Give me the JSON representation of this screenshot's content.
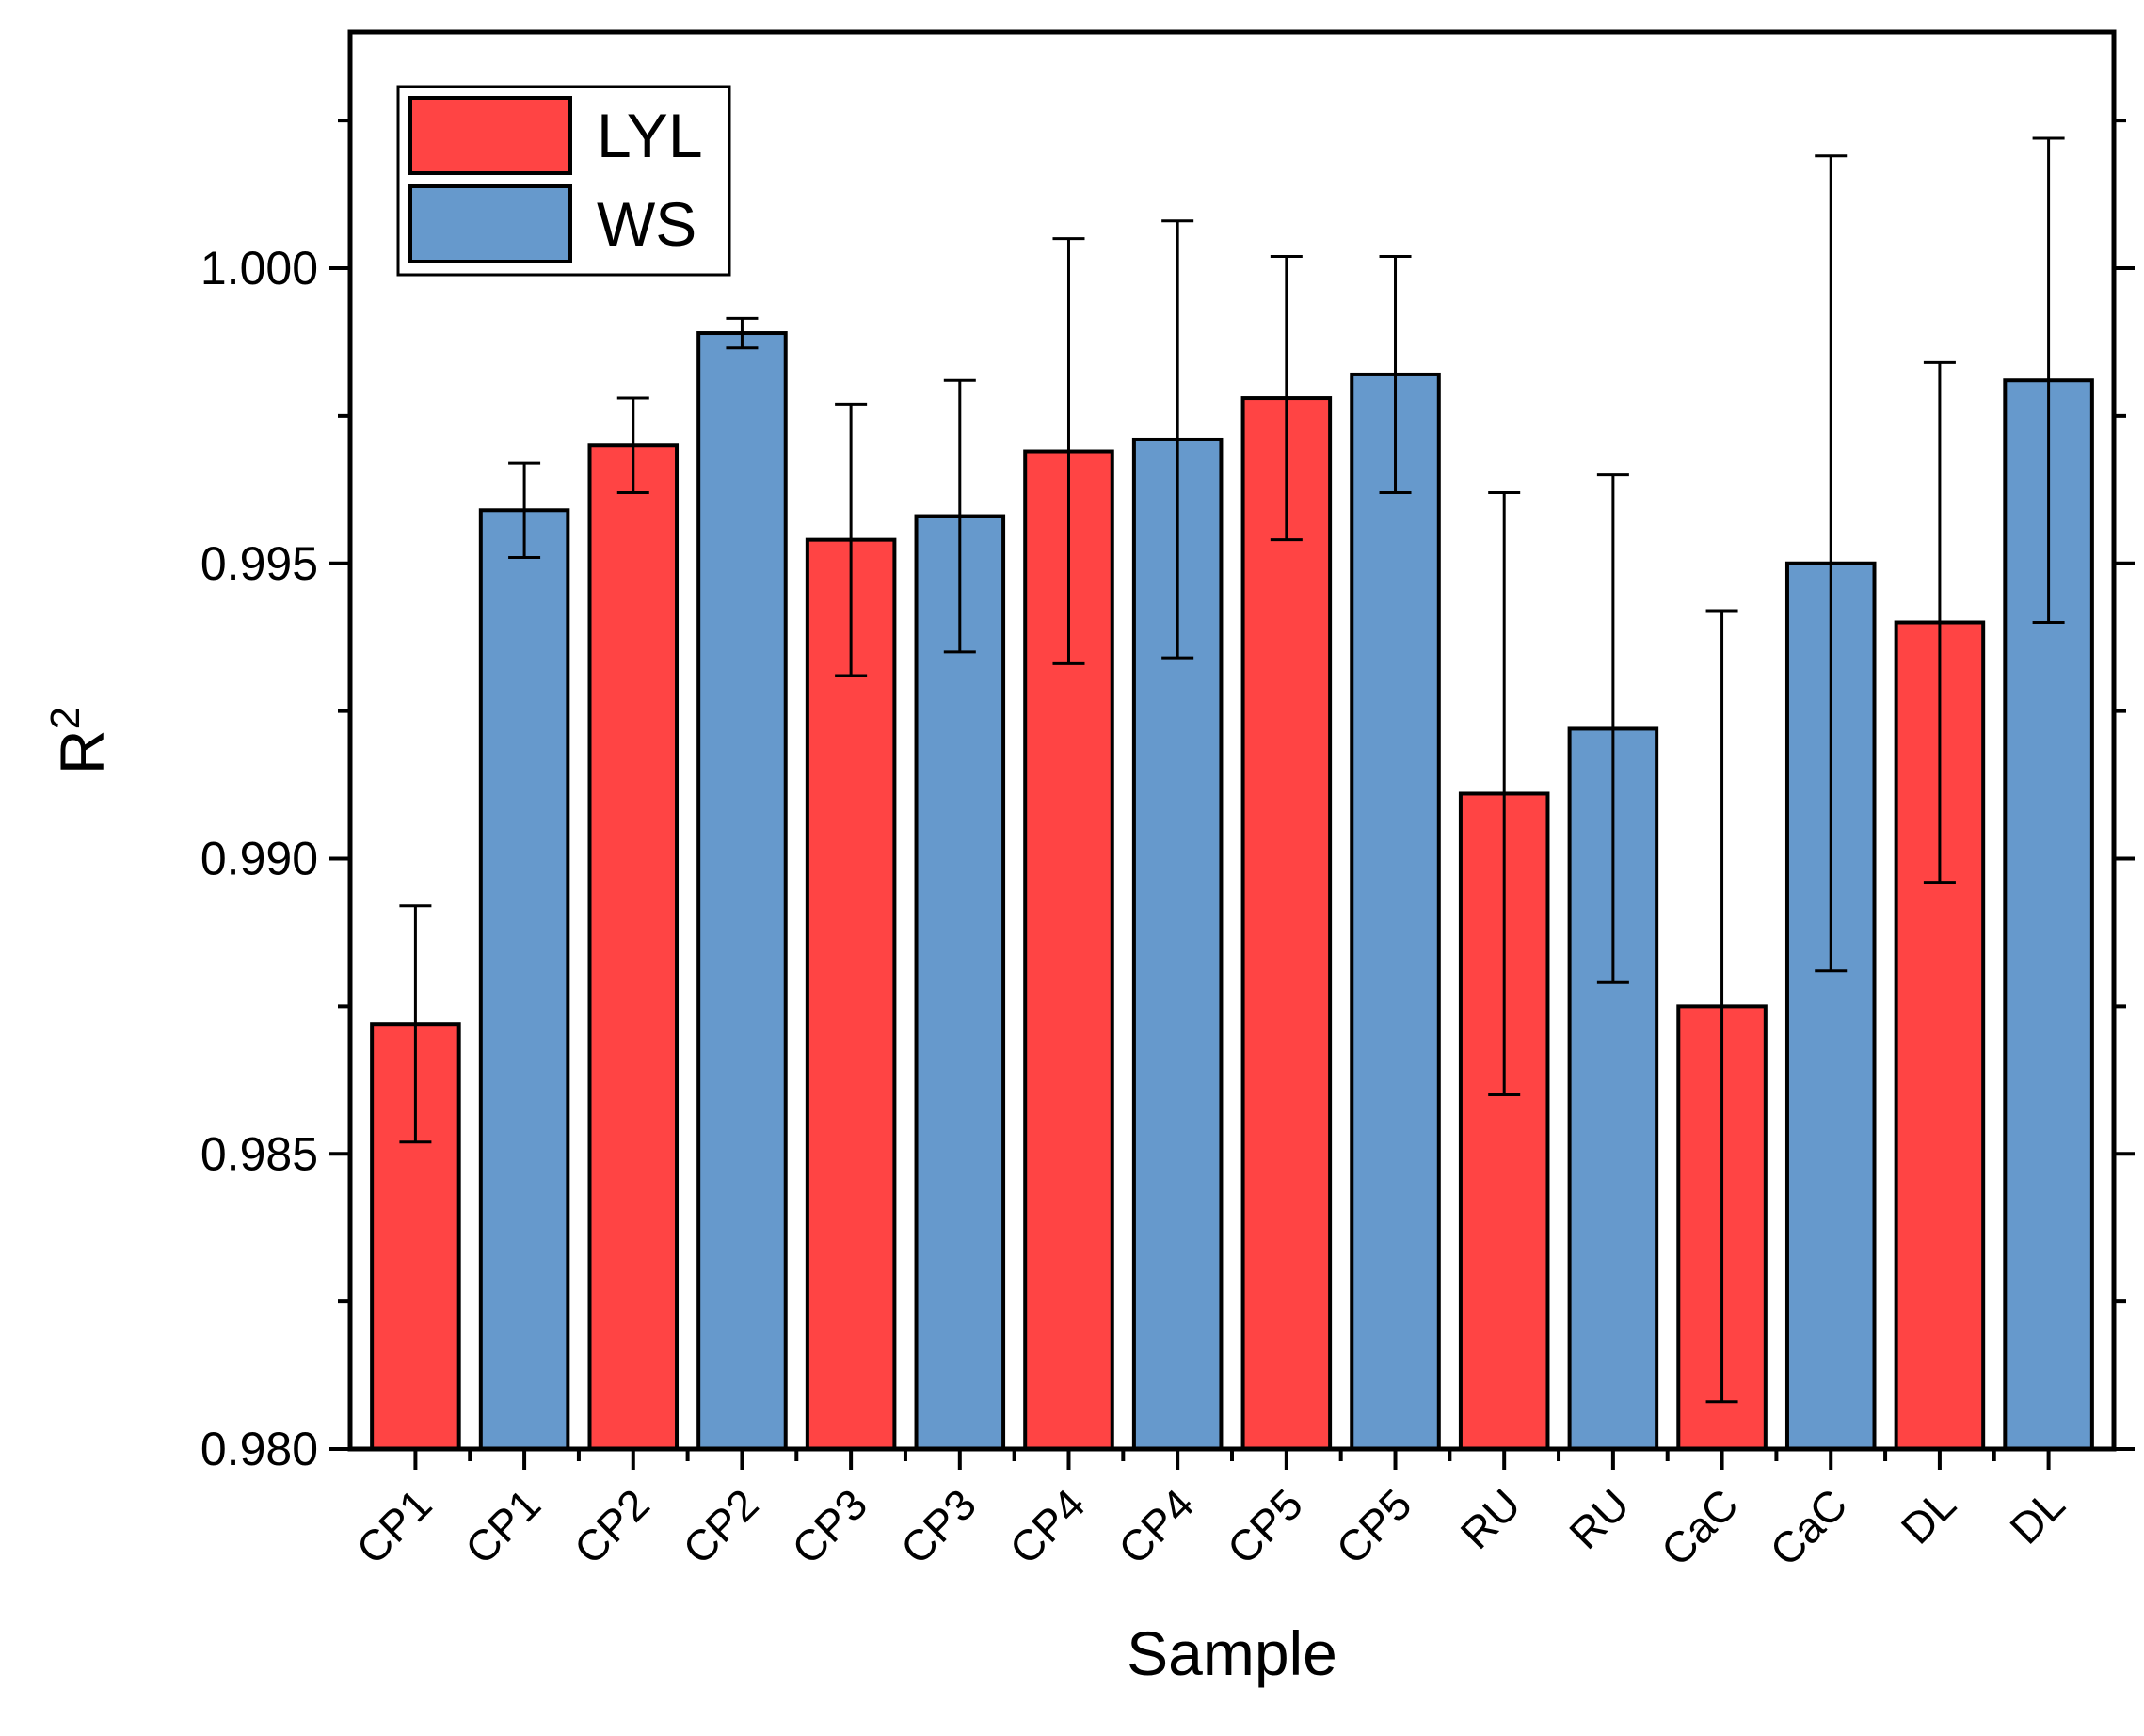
{
  "chart_data": {
    "type": "bar",
    "title": "",
    "xlabel": "Sample",
    "ylabel": "R",
    "ylabel_superscript": "2",
    "ylim": [
      0.98,
      1.004
    ],
    "yticks": [
      "0.980",
      "0.985",
      "0.990",
      "0.995",
      "1.000"
    ],
    "grid": false,
    "legend_position": "top-left",
    "colors": {
      "LYL": "#ff4444",
      "WS": "#6699cc"
    },
    "series": [
      {
        "name": "LYL"
      },
      {
        "name": "WS"
      }
    ],
    "bars": [
      {
        "label": "CP1",
        "series": "LYL",
        "value": 0.9872,
        "error": 0.002
      },
      {
        "label": "CP1",
        "series": "WS",
        "value": 0.9959,
        "error": 0.0008
      },
      {
        "label": "CP2",
        "series": "LYL",
        "value": 0.997,
        "error": 0.0008
      },
      {
        "label": "CP2",
        "series": "WS",
        "value": 0.9989,
        "error": 0.00025
      },
      {
        "label": "CP3",
        "series": "LYL",
        "value": 0.9954,
        "error": 0.0023
      },
      {
        "label": "CP3",
        "series": "WS",
        "value": 0.9958,
        "error": 0.0023
      },
      {
        "label": "CP4",
        "series": "LYL",
        "value": 0.9969,
        "error": 0.0036
      },
      {
        "label": "CP4",
        "series": "WS",
        "value": 0.9971,
        "error": 0.0037
      },
      {
        "label": "CP5",
        "series": "LYL",
        "value": 0.9978,
        "error": 0.0024
      },
      {
        "label": "CP5",
        "series": "WS",
        "value": 0.9982,
        "error": 0.002
      },
      {
        "label": "RU",
        "series": "LYL",
        "value": 0.9911,
        "error": 0.0051
      },
      {
        "label": "RU",
        "series": "WS",
        "value": 0.9922,
        "error": 0.0043
      },
      {
        "label": "CaC",
        "series": "LYL",
        "value": 0.9875,
        "error": 0.0067
      },
      {
        "label": "CaC",
        "series": "WS",
        "value": 0.995,
        "error": 0.0069
      },
      {
        "label": "DL",
        "series": "LYL",
        "value": 0.994,
        "error": 0.0044
      },
      {
        "label": "DL",
        "series": "WS",
        "value": 0.9981,
        "error": 0.0041
      }
    ]
  }
}
